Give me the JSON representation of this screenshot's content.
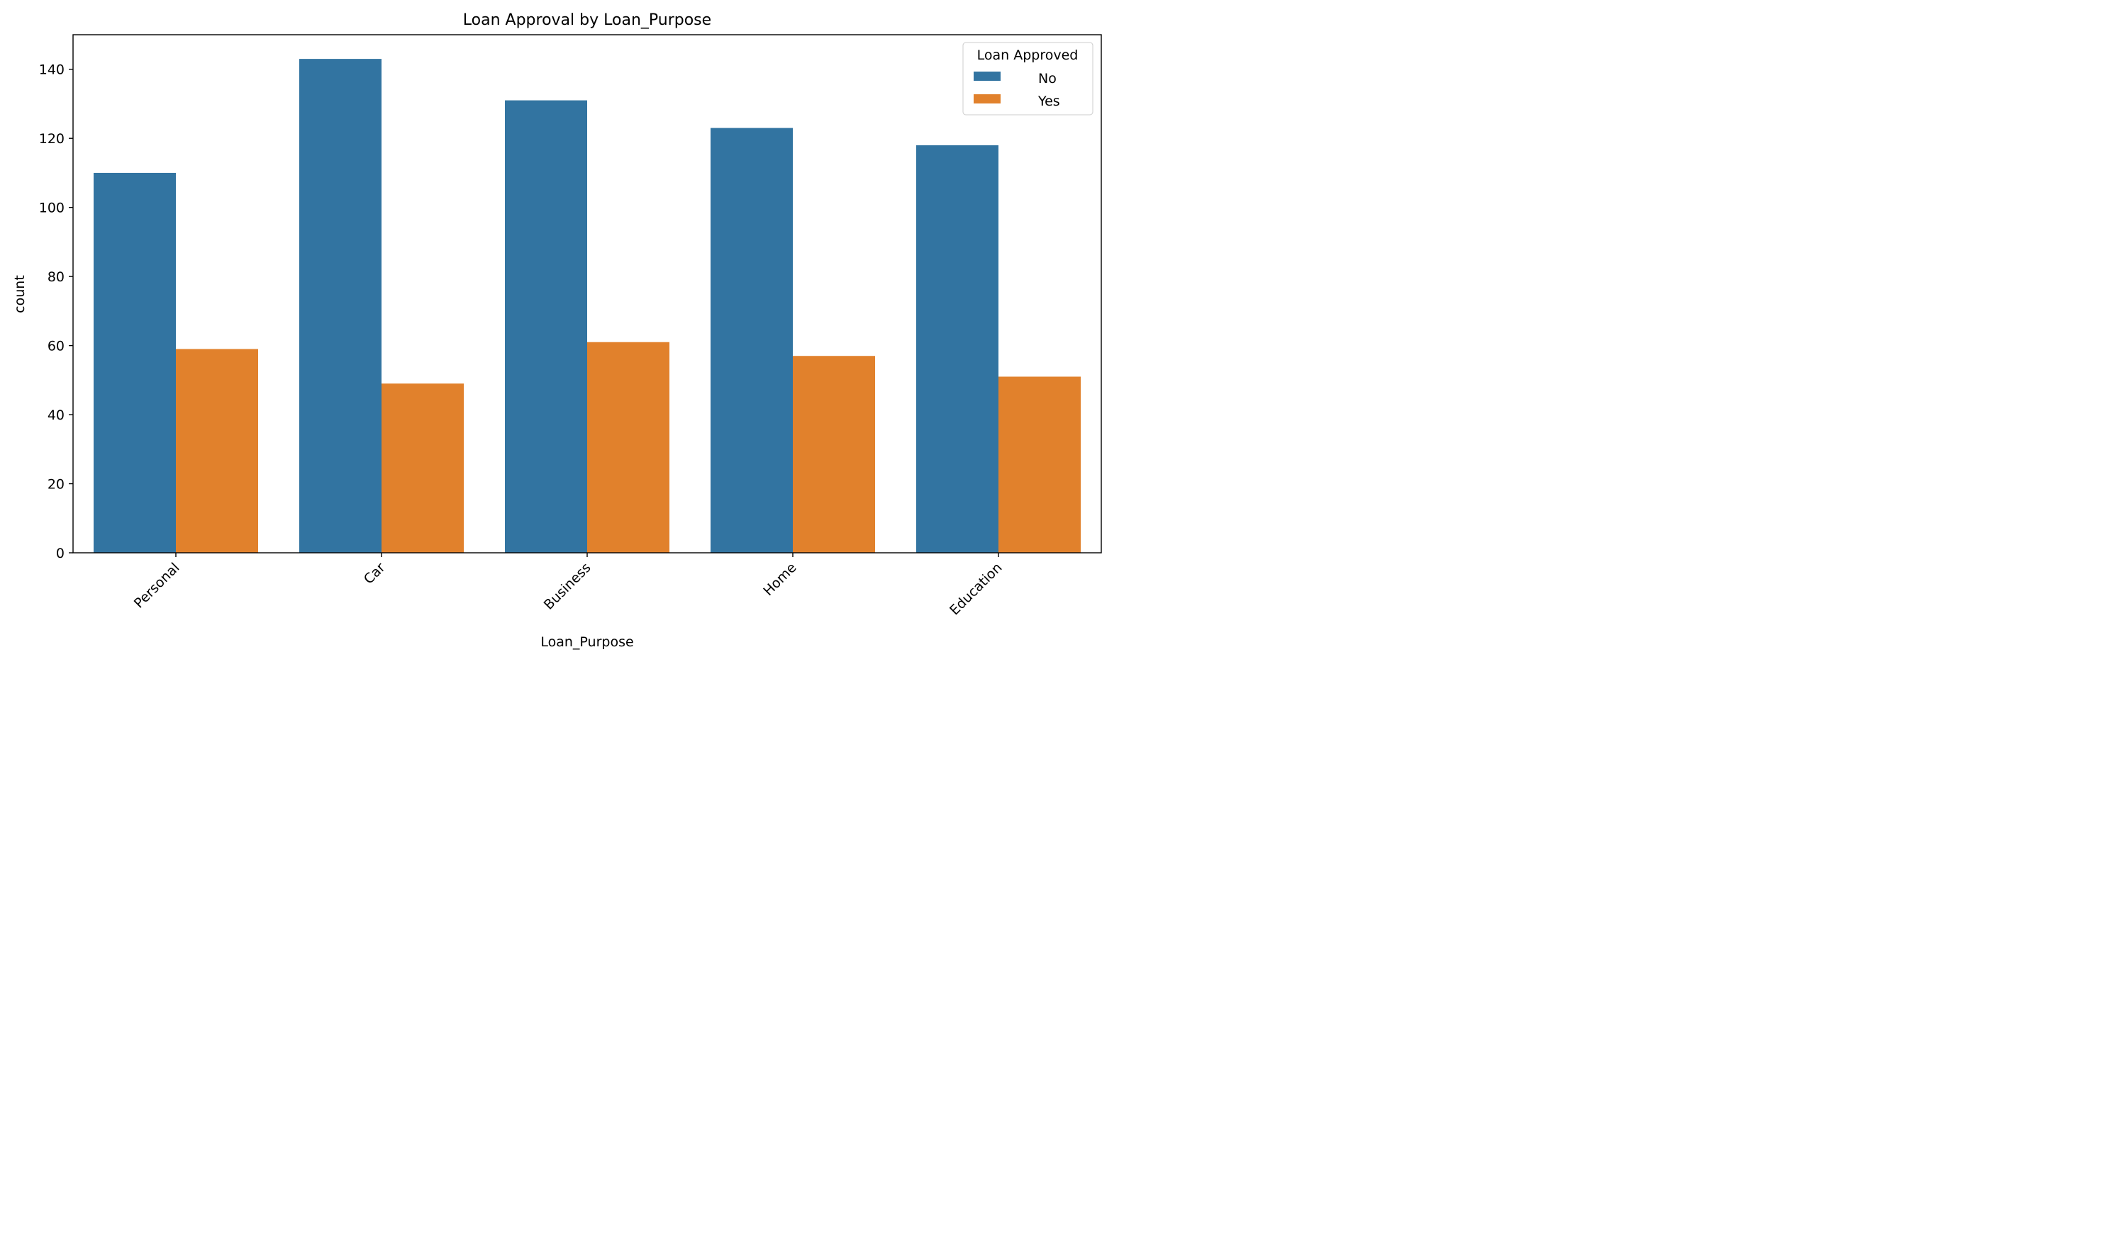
{
  "chart_data": {
    "type": "bar",
    "title": "Loan Approval by Loan_Purpose",
    "xlabel": "Loan_Purpose",
    "ylabel": "count",
    "categories": [
      "Personal",
      "Car",
      "Business",
      "Home",
      "Education"
    ],
    "series": [
      {
        "name": "No",
        "values": [
          110,
          143,
          131,
          123,
          118
        ],
        "color": "#3274a1"
      },
      {
        "name": "Yes",
        "values": [
          59,
          49,
          61,
          57,
          51
        ],
        "color": "#e1812c"
      }
    ],
    "ylim": [
      0,
      150
    ],
    "yticks": [
      0,
      20,
      40,
      60,
      80,
      100,
      120,
      140
    ],
    "grid": false,
    "legend": {
      "title": "Loan Approved",
      "placement": "top-right"
    },
    "xtick_rotation_deg": 45
  }
}
